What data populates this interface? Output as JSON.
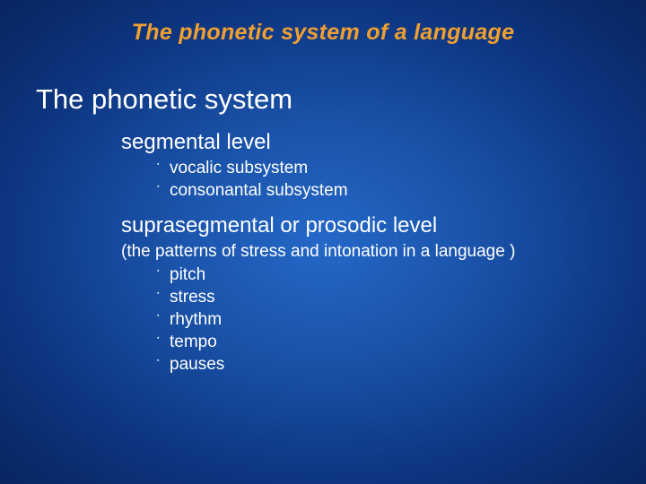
{
  "colors": {
    "title_color": "#f0a030",
    "text_color": "#ffffff",
    "bg_center": "#2468c8",
    "bg_edge": "#072560",
    "bullet_color": "#d8e4f5"
  },
  "typography": {
    "title_fontsize": 25,
    "heading_fontsize": 31,
    "level1_fontsize": 24,
    "subnote_fontsize": 19,
    "level2_fontsize": 19
  },
  "title": "The phonetic system of a language",
  "heading": "The phonetic system",
  "segmental": {
    "label": "segmental level",
    "items": [
      "vocalic subsystem",
      "consonantal subsystem"
    ]
  },
  "suprasegmental": {
    "label": "suprasegmental or prosodic level",
    "note": "(the patterns of stress and intonation in a language )",
    "items": [
      "pitch",
      "stress",
      "rhythm",
      "tempo",
      "pauses"
    ]
  }
}
